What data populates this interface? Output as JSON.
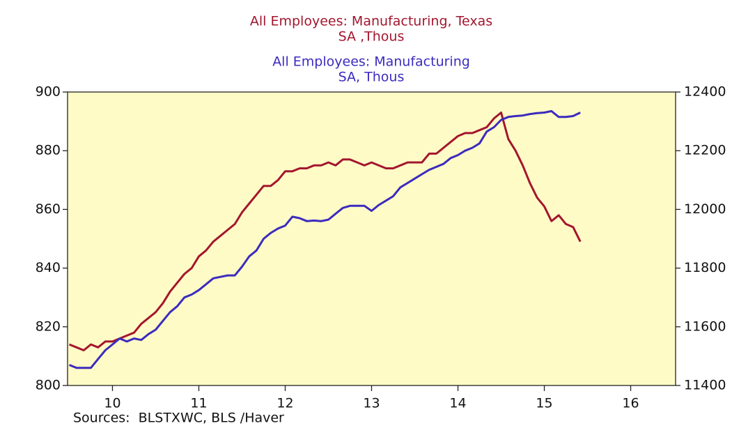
{
  "chart_data": {
    "type": "line",
    "series": [
      {
        "name": "All Employees: Manufacturing, Texas",
        "unit": "SA ,Thous",
        "color": "#a3162e",
        "axis": "y",
        "values": [
          814,
          813,
          812,
          814,
          813,
          815,
          815,
          816,
          817,
          818,
          821,
          823,
          825,
          828,
          832,
          835,
          838,
          840,
          844,
          846,
          849,
          851,
          853,
          855,
          859,
          862,
          865,
          868,
          868,
          870,
          873,
          873,
          874,
          874,
          875,
          875,
          876,
          875,
          877,
          877,
          876,
          875,
          876,
          875,
          874,
          874,
          875,
          876,
          876,
          876,
          879,
          879,
          881,
          883,
          885,
          886,
          886,
          887,
          888,
          891,
          893,
          884,
          880,
          875,
          869,
          864,
          861,
          856,
          858,
          855,
          854,
          849
        ]
      },
      {
        "name": "All Employees: Manufacturing",
        "unit": "SA, Thous",
        "color": "#3b2bbf",
        "axis": "y2",
        "values": [
          11470,
          11460,
          11460,
          11460,
          11490,
          11520,
          11540,
          11560,
          11550,
          11560,
          11555,
          11575,
          11590,
          11620,
          11650,
          11670,
          11700,
          11710,
          11725,
          11745,
          11765,
          11770,
          11775,
          11775,
          11805,
          11840,
          11860,
          11900,
          11920,
          11935,
          11945,
          11975,
          11970,
          11960,
          11962,
          11960,
          11965,
          11985,
          12005,
          12012,
          12012,
          12012,
          11995,
          12015,
          12030,
          12045,
          12075,
          12090,
          12105,
          12120,
          12135,
          12145,
          12155,
          12175,
          12185,
          12200,
          12210,
          12225,
          12265,
          12280,
          12305,
          12315,
          12318,
          12320,
          12325,
          12328,
          12330,
          12335,
          12315,
          12315,
          12318,
          12330
        ]
      }
    ],
    "x": [
      10,
      10.083,
      10.167,
      10.25,
      10.333,
      10.417,
      10.5,
      10.583,
      10.667,
      10.75,
      10.833,
      10.917,
      11,
      11.083,
      11.167,
      11.25,
      11.333,
      11.417,
      11.5,
      11.583,
      11.667,
      11.75,
      11.833,
      11.917,
      12,
      12.083,
      12.167,
      12.25,
      12.333,
      12.417,
      12.5,
      12.583,
      12.667,
      12.75,
      12.833,
      12.917,
      13,
      13.083,
      13.167,
      13.25,
      13.333,
      13.417,
      13.5,
      13.583,
      13.667,
      13.75,
      13.833,
      13.917,
      14,
      14.083,
      14.167,
      14.25,
      14.333,
      14.417,
      14.5,
      14.583,
      14.667,
      14.75,
      14.833,
      14.917,
      15,
      15.083,
      15.167,
      15.25,
      15.333,
      15.417,
      15.5,
      15.583,
      15.667,
      15.75,
      15.833,
      15.917
    ],
    "xlim": [
      9.98,
      17.02
    ],
    "xticks": [
      {
        "value": 10.5,
        "label": "10"
      },
      {
        "value": 11.5,
        "label": "11"
      },
      {
        "value": 12.5,
        "label": "12"
      },
      {
        "value": 13.5,
        "label": "13"
      },
      {
        "value": 14.5,
        "label": "14"
      },
      {
        "value": 15.5,
        "label": "15"
      },
      {
        "value": 16.5,
        "label": "16"
      }
    ],
    "ylim": [
      800,
      900
    ],
    "yticks": [
      800,
      820,
      840,
      860,
      880,
      900
    ],
    "y2lim": [
      11400,
      12400
    ],
    "y2ticks": [
      11400,
      11600,
      11800,
      12000,
      12200,
      12400
    ],
    "source": "Sources:  BLSTXWC, BLS /Haver",
    "background": "#fffbc6"
  }
}
